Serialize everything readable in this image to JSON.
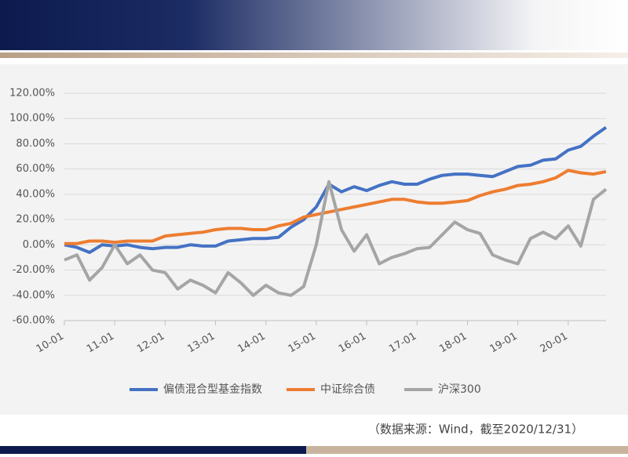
{
  "chart_data": {
    "type": "line",
    "categories": [
      "10-01",
      null,
      null,
      null,
      "11-01",
      null,
      null,
      null,
      "12-01",
      null,
      null,
      null,
      "13-01",
      null,
      null,
      null,
      "14-01",
      null,
      null,
      null,
      "15-01",
      null,
      null,
      null,
      "16-01",
      null,
      null,
      null,
      "17-01",
      null,
      null,
      null,
      "18-01",
      null,
      null,
      null,
      "19-01",
      null,
      null,
      null,
      "20-01",
      null,
      null,
      null
    ],
    "series": [
      {
        "name": "偏债混合型基金指数",
        "color": "#4472c4",
        "values": [
          0,
          -2,
          -6,
          0,
          -1,
          0,
          -2,
          -3,
          -2,
          -2,
          0,
          -1,
          -1,
          3,
          4,
          5,
          5,
          6,
          14,
          20,
          30,
          48,
          42,
          46,
          43,
          47,
          50,
          48,
          48,
          52,
          55,
          56,
          56,
          55,
          54,
          58,
          62,
          63,
          67,
          68,
          75,
          78,
          86,
          93
        ]
      },
      {
        "name": "中证综合债",
        "color": "#ed7d31",
        "values": [
          1,
          1,
          3,
          3,
          2,
          3,
          3,
          3,
          7,
          8,
          9,
          10,
          12,
          13,
          13,
          12,
          12,
          15,
          17,
          22,
          24,
          26,
          28,
          30,
          32,
          34,
          36,
          36,
          34,
          33,
          33,
          34,
          35,
          39,
          42,
          44,
          47,
          48,
          50,
          53,
          59,
          57,
          56,
          58
        ]
      },
      {
        "name": "沪深300",
        "color": "#a5a5a5",
        "values": [
          -12,
          -8,
          -28,
          -18,
          0,
          -15,
          -8,
          -20,
          -22,
          -35,
          -28,
          -32,
          -38,
          -22,
          -30,
          -40,
          -32,
          -38,
          -40,
          -33,
          0,
          50,
          12,
          -5,
          8,
          -15,
          -10,
          -7,
          -3,
          -2,
          8,
          18,
          12,
          9,
          -8,
          -12,
          -15,
          5,
          10,
          5,
          15,
          -1,
          36,
          44
        ]
      }
    ],
    "ylim": [
      -60,
      120
    ],
    "yticks": [
      {
        "value": -60,
        "label": "-60.00%"
      },
      {
        "value": -40,
        "label": "-40.00%"
      },
      {
        "value": -20,
        "label": "-20.00%"
      },
      {
        "value": 0,
        "label": "0.00%"
      },
      {
        "value": 20,
        "label": "20.00%"
      },
      {
        "value": 40,
        "label": "40.00%"
      },
      {
        "value": 60,
        "label": "60.00%"
      },
      {
        "value": 80,
        "label": "80.00%"
      },
      {
        "value": 100,
        "label": "100.00%"
      },
      {
        "value": 120,
        "label": "120.00%"
      }
    ],
    "grid": true,
    "legend": "bottom",
    "source": "（数据来源：Wind，截至2020/12/31）"
  }
}
